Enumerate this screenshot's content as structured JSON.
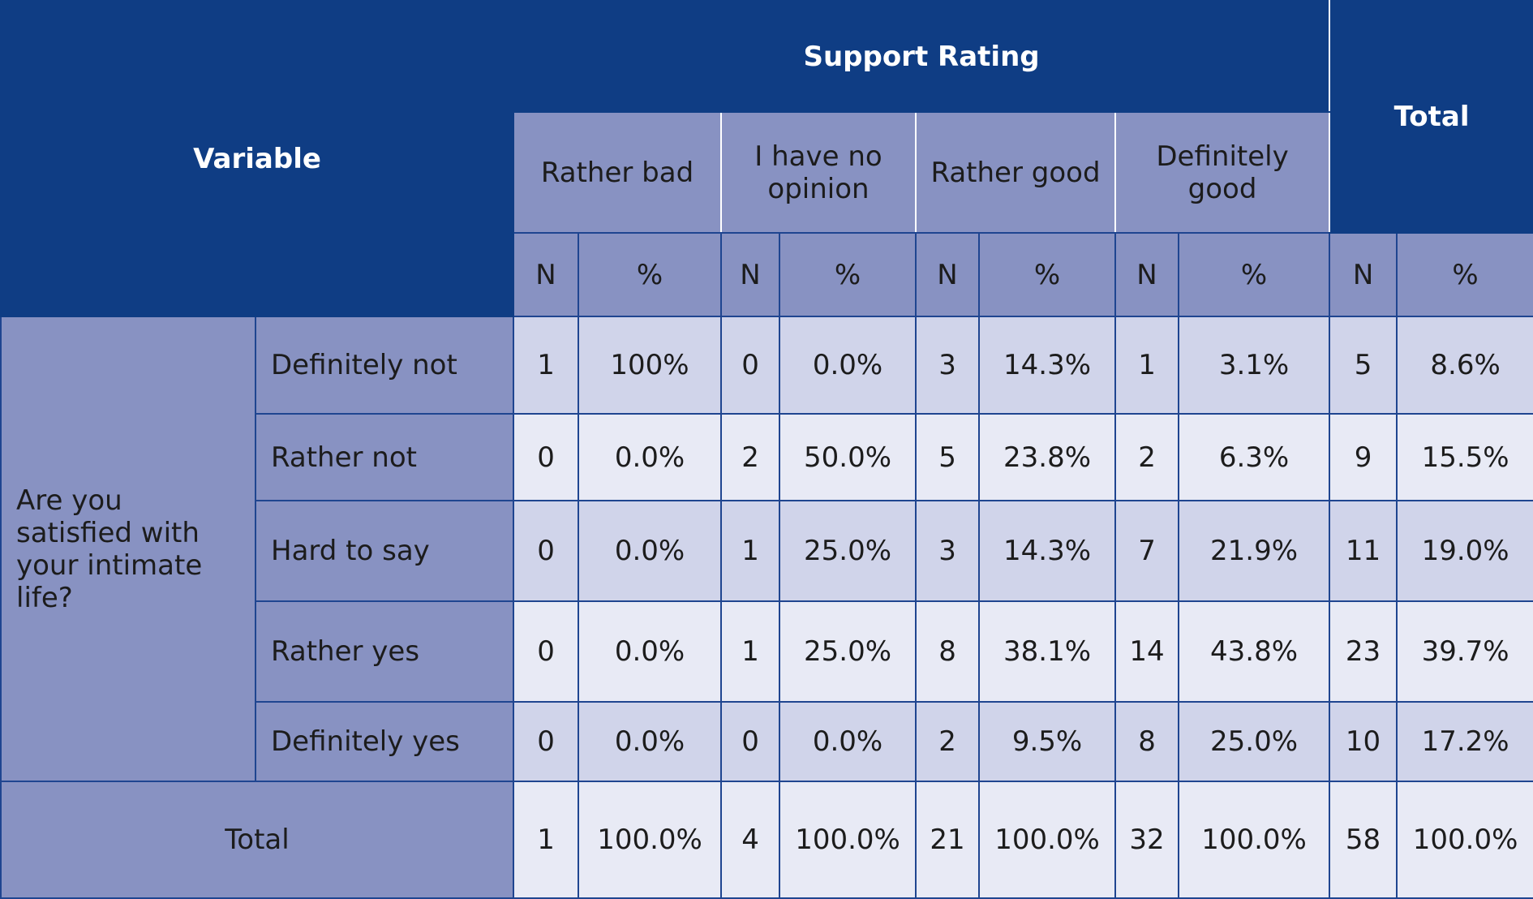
{
  "header": {
    "variable": "Variable",
    "support_rating": "Support Rating",
    "total": "Total",
    "categories": [
      "Rather bad",
      "I have no opinion",
      "Rather good",
      "Definitely good"
    ],
    "unit_n": "N",
    "unit_pct": "%"
  },
  "question": "Are you satisfied with your intimate life?",
  "rows": [
    {
      "label": "Definitely not",
      "cells": [
        "1",
        "100%",
        "0",
        "0.0%",
        "3",
        "14.3%",
        "1",
        "3.1%",
        "5",
        "8.6%"
      ]
    },
    {
      "label": "Rather not",
      "cells": [
        "0",
        "0.0%",
        "2",
        "50.0%",
        "5",
        "23.8%",
        "2",
        "6.3%",
        "9",
        "15.5%"
      ]
    },
    {
      "label": "Hard to say",
      "cells": [
        "0",
        "0.0%",
        "1",
        "25.0%",
        "3",
        "14.3%",
        "7",
        "21.9%",
        "11",
        "19.0%"
      ]
    },
    {
      "label": "Rather yes",
      "cells": [
        "0",
        "0.0%",
        "1",
        "25.0%",
        "8",
        "38.1%",
        "14",
        "43.8%",
        "23",
        "39.7%"
      ]
    },
    {
      "label": "Definitely yes",
      "cells": [
        "0",
        "0.0%",
        "0",
        "0.0%",
        "2",
        "9.5%",
        "8",
        "25.0%",
        "10",
        "17.2%"
      ]
    }
  ],
  "total_row": {
    "label": "Total",
    "cells": [
      "1",
      "100.0%",
      "4",
      "100.0%",
      "21",
      "100.0%",
      "32",
      "100.0%",
      "58",
      "100.0%"
    ]
  },
  "colors": {
    "header_dark": "#0f3d84",
    "header_light": "#8892c2",
    "row_odd": "#d0d4ea",
    "row_even": "#e8eaf5",
    "border": "#1f4590"
  }
}
